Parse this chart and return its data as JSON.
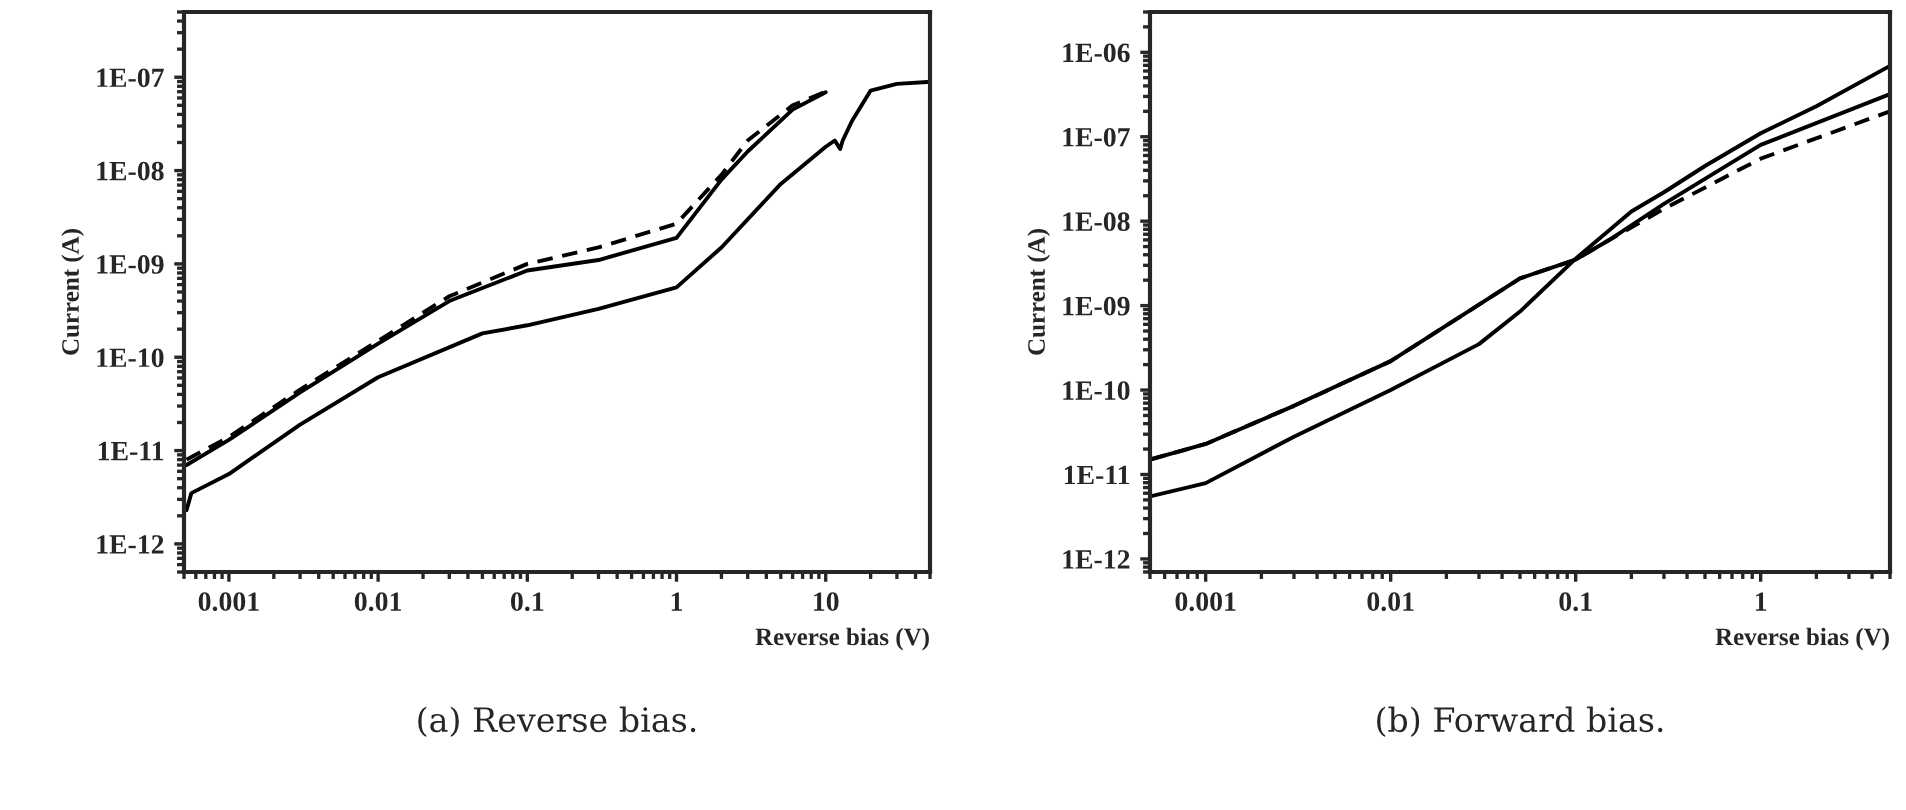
{
  "chart_data": [
    {
      "type": "line",
      "xlabel": "Reverse bias (V)",
      "ylabel": "Current (A)",
      "log": "xy",
      "grid": false,
      "legend": false,
      "xlim": [
        0.0005,
        50
      ],
      "ylim": [
        5e-13,
        5e-07
      ],
      "xticks": [
        {
          "value": 0.001,
          "label": "0.001"
        },
        {
          "value": 0.01,
          "label": "0.01"
        },
        {
          "value": 0.1,
          "label": "0.1"
        },
        {
          "value": 1,
          "label": "1"
        },
        {
          "value": 10,
          "label": "10"
        }
      ],
      "yticks": [
        {
          "value": 1e-12,
          "label": "1E-12"
        },
        {
          "value": 1e-11,
          "label": "1E-11"
        },
        {
          "value": 1e-10,
          "label": "1E-10"
        },
        {
          "value": 1e-09,
          "label": "1E-09"
        },
        {
          "value": 1e-08,
          "label": "1E-08"
        },
        {
          "value": 1e-07,
          "label": "1E-07"
        }
      ],
      "annotations": [
        "(a) Reverse bias."
      ],
      "series": [
        {
          "color": "#000000",
          "line_style": "dashed",
          "x": [
            0.00052,
            0.001,
            0.003,
            0.01,
            0.03,
            0.1,
            0.3,
            1,
            2,
            3,
            6,
            10
          ],
          "values": [
            8e-12,
            1.4e-11,
            4.5e-11,
            1.5e-10,
            4.5e-10,
            1e-09,
            1.5e-09,
            2.7e-09,
            9e-09,
            2.1e-08,
            5e-08,
            7e-08
          ]
        },
        {
          "color": "#000000",
          "line_style": "solid",
          "x": [
            0.00052,
            0.001,
            0.003,
            0.01,
            0.03,
            0.1,
            0.3,
            1,
            2,
            3,
            6,
            10
          ],
          "values": [
            7e-12,
            1.3e-11,
            4.2e-11,
            1.4e-10,
            4e-10,
            8.5e-10,
            1.1e-09,
            1.9e-09,
            8e-09,
            1.6e-08,
            4.5e-08,
            6.9e-08
          ]
        },
        {
          "color": "#000000",
          "line_style": "solid",
          "x": [
            0.00052,
            0.00056,
            0.001,
            0.003,
            0.01,
            0.05,
            0.1,
            0.3,
            1,
            2,
            5,
            10,
            11.5,
            12.5,
            13,
            15,
            20,
            30,
            48
          ],
          "values": [
            2.3e-12,
            3.5e-12,
            5.6e-12,
            1.9e-11,
            6.1e-11,
            1.8e-10,
            2.2e-10,
            3.3e-10,
            5.6e-10,
            1.5e-09,
            7.2e-09,
            1.8e-08,
            2.1e-08,
            1.7e-08,
            2.1e-08,
            3.4e-08,
            7.2e-08,
            8.5e-08,
            8.9e-08
          ]
        }
      ]
    },
    {
      "type": "line",
      "xlabel": "Reverse bias (V)",
      "ylabel": "Current (A)",
      "log": "xy",
      "grid": false,
      "legend": false,
      "xlim": [
        0.0005,
        5
      ],
      "ylim": [
        7e-13,
        3e-06
      ],
      "xticks": [
        {
          "value": 0.001,
          "label": "0.001"
        },
        {
          "value": 0.01,
          "label": "0.01"
        },
        {
          "value": 0.1,
          "label": "0.1"
        },
        {
          "value": 1,
          "label": "1"
        }
      ],
      "yticks": [
        {
          "value": 1e-12,
          "label": "1E-12"
        },
        {
          "value": 1e-11,
          "label": "1E-11"
        },
        {
          "value": 1e-10,
          "label": "1E-10"
        },
        {
          "value": 1e-09,
          "label": "1E-09"
        },
        {
          "value": 1e-08,
          "label": "1E-08"
        },
        {
          "value": 1e-07,
          "label": "1E-07"
        },
        {
          "value": 1e-06,
          "label": "1E-06"
        }
      ],
      "annotations": [
        "(b) Forward bias."
      ],
      "series": [
        {
          "color": "#000000",
          "line_style": "dashed",
          "x": [
            0.0005,
            0.001,
            0.003,
            0.01,
            0.05,
            0.1,
            0.15,
            0.3,
            1,
            5
          ],
          "values": [
            1.5e-11,
            2.3e-11,
            6.5e-11,
            2.2e-10,
            2.1e-09,
            3.5e-09,
            5.9e-09,
            1.4e-08,
            5.5e-08,
            2e-07
          ]
        },
        {
          "color": "#000000",
          "line_style": "solid",
          "x": [
            0.0005,
            0.001,
            0.003,
            0.01,
            0.05,
            0.1,
            0.15,
            0.3,
            1,
            5
          ],
          "values": [
            1.5e-11,
            2.3e-11,
            6.5e-11,
            2.2e-10,
            2.1e-09,
            3.5e-09,
            5.9e-09,
            1.6e-08,
            8e-08,
            3.2e-07
          ]
        },
        {
          "color": "#000000",
          "line_style": "solid",
          "x": [
            0.0005,
            0.001,
            0.003,
            0.01,
            0.03,
            0.05,
            0.1,
            0.2,
            0.3,
            0.5,
            1,
            2,
            5
          ],
          "values": [
            5.5e-12,
            7.9e-12,
            2.8e-11,
            1e-10,
            3.5e-10,
            8.5e-10,
            3.6e-09,
            1.3e-08,
            2.2e-08,
            4.5e-08,
            1.1e-07,
            2.3e-07,
            6.9e-07
          ]
        }
      ]
    }
  ]
}
